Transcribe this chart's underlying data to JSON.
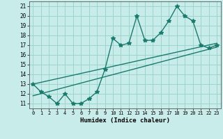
{
  "title": "",
  "xlabel": "Humidex (Indice chaleur)",
  "bg_color": "#c8ece9",
  "grid_color": "#9dd4ce",
  "line_color": "#1a7a6e",
  "xlim": [
    -0.5,
    23.5
  ],
  "ylim": [
    10.5,
    21.5
  ],
  "xticks": [
    0,
    1,
    2,
    3,
    4,
    5,
    6,
    7,
    8,
    9,
    10,
    11,
    12,
    13,
    14,
    15,
    16,
    17,
    18,
    19,
    20,
    21,
    22,
    23
  ],
  "yticks": [
    11,
    12,
    13,
    14,
    15,
    16,
    17,
    18,
    19,
    20,
    21
  ],
  "data_x": [
    0,
    1,
    2,
    3,
    4,
    5,
    6,
    7,
    8,
    9,
    10,
    11,
    12,
    13,
    14,
    15,
    16,
    17,
    18,
    19,
    20,
    21,
    22,
    23
  ],
  "data_y": [
    13.0,
    12.2,
    11.7,
    11.0,
    12.0,
    11.0,
    11.0,
    11.5,
    12.2,
    14.5,
    17.7,
    17.0,
    17.2,
    20.0,
    17.5,
    17.5,
    18.3,
    19.5,
    21.0,
    20.0,
    19.5,
    17.0,
    16.7,
    17.0
  ],
  "trend1_x": [
    0,
    23
  ],
  "trend1_y": [
    13.0,
    17.2
  ],
  "trend2_x": [
    0,
    23
  ],
  "trend2_y": [
    11.8,
    16.8
  ],
  "markersize": 4,
  "linewidth": 1.0
}
